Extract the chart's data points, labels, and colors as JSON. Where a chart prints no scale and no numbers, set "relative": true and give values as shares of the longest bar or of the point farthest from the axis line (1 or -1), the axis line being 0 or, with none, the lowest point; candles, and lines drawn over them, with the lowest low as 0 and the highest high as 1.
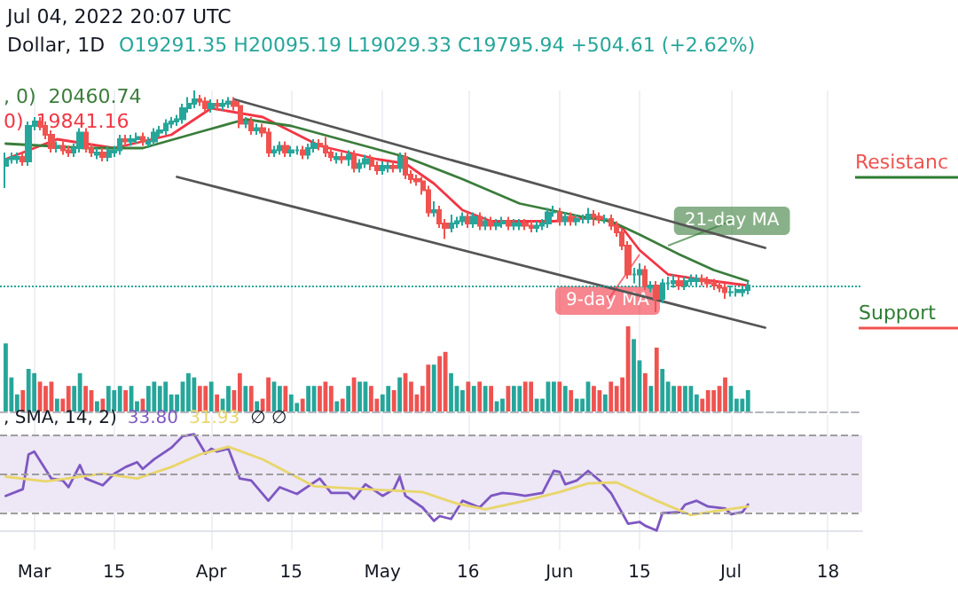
{
  "chart_data": [
    {
      "type": "candlestick",
      "title": "Dollar, 1D",
      "subtitle": "O19291.35 H20095.19 L19029.33 C19795.94 +504.61 (+2.62%)",
      "relative": true,
      "grid": "x",
      "tick_labels": false,
      "xlim": [
        "2022-02-23",
        "2022-07-24"
      ],
      "xticks": [
        {
          "value": "2022-03-01",
          "label": null
        },
        {
          "value": "2022-03-15",
          "label": null
        },
        {
          "value": "2022-04-01",
          "label": null
        },
        {
          "value": "2022-04-15",
          "label": null
        },
        {
          "value": "2022-05-01",
          "label": null
        },
        {
          "value": "2022-05-16",
          "label": null
        },
        {
          "value": "2022-06-01",
          "label": null
        },
        {
          "value": "2022-06-15",
          "label": null
        },
        {
          "value": "2022-07-01",
          "label": null
        },
        {
          "value": "2022-07-18",
          "label": null
        }
      ],
      "x": [
        "2022-02-24",
        "2022-02-25",
        "2022-02-26",
        "2022-02-27",
        "2022-02-28",
        "2022-03-01",
        "2022-03-02",
        "2022-03-03",
        "2022-03-04",
        "2022-03-05",
        "2022-03-06",
        "2022-03-07",
        "2022-03-08",
        "2022-03-09",
        "2022-03-10",
        "2022-03-11",
        "2022-03-12",
        "2022-03-13",
        "2022-03-14",
        "2022-03-15",
        "2022-03-16",
        "2022-03-17",
        "2022-03-18",
        "2022-03-19",
        "2022-03-20",
        "2022-03-21",
        "2022-03-22",
        "2022-03-23",
        "2022-03-24",
        "2022-03-25",
        "2022-03-26",
        "2022-03-27",
        "2022-03-28",
        "2022-03-29",
        "2022-03-30",
        "2022-03-31",
        "2022-04-01",
        "2022-04-02",
        "2022-04-03",
        "2022-04-04",
        "2022-04-05",
        "2022-04-06",
        "2022-04-07",
        "2022-04-08",
        "2022-04-09",
        "2022-04-10",
        "2022-04-11",
        "2022-04-12",
        "2022-04-13",
        "2022-04-14",
        "2022-04-15",
        "2022-04-16",
        "2022-04-17",
        "2022-04-18",
        "2022-04-19",
        "2022-04-20",
        "2022-04-21",
        "2022-04-22",
        "2022-04-23",
        "2022-04-24",
        "2022-04-25",
        "2022-04-26",
        "2022-04-27",
        "2022-04-28",
        "2022-04-29",
        "2022-04-30",
        "2022-05-01",
        "2022-05-02",
        "2022-05-03",
        "2022-05-04",
        "2022-05-05",
        "2022-05-06",
        "2022-05-07",
        "2022-05-08",
        "2022-05-09",
        "2022-05-10",
        "2022-05-11",
        "2022-05-12",
        "2022-05-13",
        "2022-05-14",
        "2022-05-15",
        "2022-05-16",
        "2022-05-17",
        "2022-05-18",
        "2022-05-19",
        "2022-05-20",
        "2022-05-21",
        "2022-05-22",
        "2022-05-23",
        "2022-05-24",
        "2022-05-25",
        "2022-05-26",
        "2022-05-27",
        "2022-05-28",
        "2022-05-29",
        "2022-05-30",
        "2022-05-31",
        "2022-06-01",
        "2022-06-02",
        "2022-06-03",
        "2022-06-04",
        "2022-06-05",
        "2022-06-06",
        "2022-06-07",
        "2022-06-08",
        "2022-06-09",
        "2022-06-10",
        "2022-06-11",
        "2022-06-12",
        "2022-06-13",
        "2022-06-14",
        "2022-06-15",
        "2022-06-16",
        "2022-06-17",
        "2022-06-18",
        "2022-06-19",
        "2022-06-20",
        "2022-06-21",
        "2022-06-22",
        "2022-06-23",
        "2022-06-24",
        "2022-06-25",
        "2022-06-26",
        "2022-06-27",
        "2022-06-28",
        "2022-06-29",
        "2022-06-30",
        "2022-07-01",
        "2022-07-02",
        "2022-07-03",
        "2022-07-04"
      ],
      "ohlc": [
        [
          0.66,
          0.72,
          0.56,
          0.69
        ],
        [
          0.69,
          0.72,
          0.67,
          0.7
        ],
        [
          0.69,
          0.72,
          0.67,
          0.7
        ],
        [
          0.7,
          0.72,
          0.66,
          0.68
        ],
        [
          0.68,
          0.86,
          0.66,
          0.84
        ],
        [
          0.84,
          0.88,
          0.82,
          0.86
        ],
        [
          0.86,
          0.88,
          0.82,
          0.84
        ],
        [
          0.84,
          0.86,
          0.78,
          0.8
        ],
        [
          0.8,
          0.82,
          0.72,
          0.74
        ],
        [
          0.74,
          0.77,
          0.72,
          0.75
        ],
        [
          0.75,
          0.77,
          0.71,
          0.73
        ],
        [
          0.73,
          0.75,
          0.7,
          0.72
        ],
        [
          0.72,
          0.76,
          0.7,
          0.74
        ],
        [
          0.74,
          0.83,
          0.72,
          0.81
        ],
        [
          0.81,
          0.83,
          0.72,
          0.74
        ],
        [
          0.74,
          0.76,
          0.7,
          0.72
        ],
        [
          0.71,
          0.74,
          0.69,
          0.72
        ],
        [
          0.72,
          0.74,
          0.68,
          0.7
        ],
        [
          0.7,
          0.75,
          0.68,
          0.73
        ],
        [
          0.72,
          0.75,
          0.7,
          0.73
        ],
        [
          0.73,
          0.8,
          0.71,
          0.78
        ],
        [
          0.78,
          0.8,
          0.75,
          0.77
        ],
        [
          0.77,
          0.8,
          0.75,
          0.78
        ],
        [
          0.78,
          0.81,
          0.76,
          0.79
        ],
        [
          0.79,
          0.81,
          0.75,
          0.77
        ],
        [
          0.76,
          0.79,
          0.74,
          0.77
        ],
        [
          0.77,
          0.83,
          0.75,
          0.81
        ],
        [
          0.81,
          0.84,
          0.79,
          0.82
        ],
        [
          0.82,
          0.87,
          0.8,
          0.85
        ],
        [
          0.85,
          0.88,
          0.83,
          0.86
        ],
        [
          0.86,
          0.89,
          0.84,
          0.87
        ],
        [
          0.87,
          0.94,
          0.85,
          0.92
        ],
        [
          0.92,
          0.97,
          0.9,
          0.94
        ],
        [
          0.94,
          1.0,
          0.92,
          0.96
        ],
        [
          0.96,
          0.98,
          0.93,
          0.95
        ],
        [
          0.95,
          0.97,
          0.9,
          0.92
        ],
        [
          0.92,
          0.96,
          0.9,
          0.94
        ],
        [
          0.94,
          0.96,
          0.91,
          0.93
        ],
        [
          0.93,
          0.96,
          0.91,
          0.94
        ],
        [
          0.94,
          0.97,
          0.92,
          0.95
        ],
        [
          0.95,
          0.97,
          0.91,
          0.93
        ],
        [
          0.93,
          0.95,
          0.83,
          0.85
        ],
        [
          0.85,
          0.88,
          0.83,
          0.86
        ],
        [
          0.86,
          0.88,
          0.8,
          0.82
        ],
        [
          0.82,
          0.85,
          0.8,
          0.83
        ],
        [
          0.83,
          0.85,
          0.79,
          0.81
        ],
        [
          0.81,
          0.83,
          0.7,
          0.72
        ],
        [
          0.72,
          0.75,
          0.7,
          0.73
        ],
        [
          0.73,
          0.77,
          0.71,
          0.75
        ],
        [
          0.75,
          0.77,
          0.7,
          0.72
        ],
        [
          0.72,
          0.75,
          0.7,
          0.73
        ],
        [
          0.73,
          0.75,
          0.71,
          0.73
        ],
        [
          0.73,
          0.75,
          0.69,
          0.71
        ],
        [
          0.71,
          0.76,
          0.69,
          0.74
        ],
        [
          0.74,
          0.78,
          0.72,
          0.76
        ],
        [
          0.76,
          0.78,
          0.73,
          0.75
        ],
        [
          0.75,
          0.79,
          0.7,
          0.72
        ],
        [
          0.72,
          0.74,
          0.68,
          0.7
        ],
        [
          0.69,
          0.72,
          0.67,
          0.7
        ],
        [
          0.7,
          0.72,
          0.67,
          0.69
        ],
        [
          0.69,
          0.73,
          0.66,
          0.71
        ],
        [
          0.71,
          0.73,
          0.63,
          0.65
        ],
        [
          0.65,
          0.69,
          0.63,
          0.67
        ],
        [
          0.67,
          0.71,
          0.65,
          0.69
        ],
        [
          0.69,
          0.71,
          0.64,
          0.66
        ],
        [
          0.66,
          0.68,
          0.62,
          0.64
        ],
        [
          0.64,
          0.68,
          0.62,
          0.66
        ],
        [
          0.65,
          0.68,
          0.63,
          0.66
        ],
        [
          0.66,
          0.68,
          0.63,
          0.65
        ],
        [
          0.65,
          0.72,
          0.63,
          0.7
        ],
        [
          0.7,
          0.72,
          0.6,
          0.62
        ],
        [
          0.62,
          0.64,
          0.58,
          0.6
        ],
        [
          0.6,
          0.62,
          0.57,
          0.59
        ],
        [
          0.59,
          0.61,
          0.53,
          0.55
        ],
        [
          0.55,
          0.57,
          0.43,
          0.45
        ],
        [
          0.45,
          0.5,
          0.43,
          0.46
        ],
        [
          0.46,
          0.48,
          0.38,
          0.4
        ],
        [
          0.4,
          0.42,
          0.33,
          0.38
        ],
        [
          0.38,
          0.44,
          0.36,
          0.4
        ],
        [
          0.4,
          0.43,
          0.38,
          0.41
        ],
        [
          0.41,
          0.45,
          0.39,
          0.43
        ],
        [
          0.43,
          0.45,
          0.38,
          0.4
        ],
        [
          0.4,
          0.45,
          0.38,
          0.43
        ],
        [
          0.43,
          0.45,
          0.37,
          0.39
        ],
        [
          0.39,
          0.43,
          0.37,
          0.41
        ],
        [
          0.41,
          0.43,
          0.37,
          0.39
        ],
        [
          0.39,
          0.42,
          0.37,
          0.4
        ],
        [
          0.4,
          0.43,
          0.38,
          0.41
        ],
        [
          0.41,
          0.43,
          0.37,
          0.39
        ],
        [
          0.39,
          0.42,
          0.37,
          0.4
        ],
        [
          0.39,
          0.42,
          0.37,
          0.4
        ],
        [
          0.4,
          0.42,
          0.37,
          0.39
        ],
        [
          0.39,
          0.41,
          0.36,
          0.38
        ],
        [
          0.38,
          0.41,
          0.36,
          0.39
        ],
        [
          0.39,
          0.42,
          0.37,
          0.4
        ],
        [
          0.4,
          0.47,
          0.38,
          0.45
        ],
        [
          0.45,
          0.48,
          0.43,
          0.45
        ],
        [
          0.45,
          0.47,
          0.39,
          0.41
        ],
        [
          0.41,
          0.45,
          0.39,
          0.43
        ],
        [
          0.43,
          0.45,
          0.39,
          0.41
        ],
        [
          0.41,
          0.44,
          0.39,
          0.42
        ],
        [
          0.42,
          0.44,
          0.4,
          0.42
        ],
        [
          0.42,
          0.47,
          0.4,
          0.44
        ],
        [
          0.44,
          0.46,
          0.39,
          0.43
        ],
        [
          0.43,
          0.45,
          0.4,
          0.42
        ],
        [
          0.42,
          0.44,
          0.4,
          0.42
        ],
        [
          0.42,
          0.44,
          0.37,
          0.39
        ],
        [
          0.39,
          0.41,
          0.34,
          0.36
        ],
        [
          0.36,
          0.38,
          0.28,
          0.3
        ],
        [
          0.3,
          0.32,
          0.15,
          0.17
        ],
        [
          0.17,
          0.2,
          0.13,
          0.17
        ],
        [
          0.17,
          0.22,
          0.12,
          0.19
        ],
        [
          0.19,
          0.21,
          0.1,
          0.12
        ],
        [
          0.11,
          0.14,
          0.09,
          0.12
        ],
        [
          0.12,
          0.14,
          0.0,
          0.06
        ],
        [
          0.06,
          0.15,
          0.04,
          0.13
        ],
        [
          0.13,
          0.16,
          0.1,
          0.13
        ],
        [
          0.13,
          0.17,
          0.11,
          0.14
        ],
        [
          0.14,
          0.16,
          0.1,
          0.12
        ],
        [
          0.12,
          0.16,
          0.1,
          0.14
        ],
        [
          0.14,
          0.17,
          0.12,
          0.15
        ],
        [
          0.14,
          0.17,
          0.12,
          0.15
        ],
        [
          0.15,
          0.17,
          0.12,
          0.14
        ],
        [
          0.14,
          0.16,
          0.11,
          0.13
        ],
        [
          0.13,
          0.15,
          0.1,
          0.12
        ],
        [
          0.12,
          0.14,
          0.09,
          0.11
        ],
        [
          0.11,
          0.13,
          0.06,
          0.09
        ],
        [
          0.09,
          0.12,
          0.07,
          0.09
        ],
        [
          0.09,
          0.11,
          0.07,
          0.1
        ],
        [
          0.09,
          0.12,
          0.07,
          0.1
        ],
        [
          0.1,
          0.14,
          0.08,
          0.12
        ]
      ],
      "series": [
        {
          "type": "line",
          "color": "#f23645",
          "x": [
            "2022-02-24",
            "2022-03-05",
            "2022-03-15",
            "2022-03-25",
            "2022-04-01",
            "2022-04-10",
            "2022-04-20",
            "2022-04-30",
            "2022-05-05",
            "2022-05-10",
            "2022-05-15",
            "2022-05-20",
            "2022-05-31",
            "2022-06-08",
            "2022-06-12",
            "2022-06-15",
            "2022-06-20",
            "2022-06-25",
            "2022-07-04"
          ],
          "values": [
            0.69,
            0.78,
            0.74,
            0.8,
            0.92,
            0.88,
            0.75,
            0.69,
            0.67,
            0.58,
            0.46,
            0.41,
            0.41,
            0.43,
            0.38,
            0.28,
            0.17,
            0.15,
            0.12
          ]
        },
        {
          "type": "line",
          "color": "#3b7d3b",
          "x": [
            "2022-02-24",
            "2022-03-10",
            "2022-03-20",
            "2022-03-31",
            "2022-04-07",
            "2022-04-15",
            "2022-04-25",
            "2022-05-05",
            "2022-05-15",
            "2022-05-25",
            "2022-06-05",
            "2022-06-10",
            "2022-06-15",
            "2022-06-22",
            "2022-06-28",
            "2022-07-04"
          ],
          "values": [
            0.76,
            0.74,
            0.74,
            0.82,
            0.87,
            0.84,
            0.77,
            0.7,
            0.6,
            0.49,
            0.43,
            0.41,
            0.35,
            0.26,
            0.19,
            0.14
          ]
        },
        {
          "type": "line",
          "color": "#555555",
          "x": [
            "2022-04-05",
            "2022-07-07"
          ],
          "values": [
            0.96,
            0.29
          ]
        },
        {
          "type": "line",
          "color": "#555555",
          "x": [
            "2022-03-26",
            "2022-07-07"
          ],
          "values": [
            0.61,
            -0.07
          ]
        }
      ],
      "ref_lines": [
        {
          "axis": "y",
          "value": 0.12,
          "color": "#26a69a",
          "line_style": "dotted"
        }
      ],
      "annotations": [
        "Jul 04, 2022 20:07 UTC",
        ", 0)  20460.74",
        "0)  19841.16",
        {
          "text": "21-day MA",
          "x": "2022-06-20",
          "y": 0.3
        },
        {
          "text": "9-day MA",
          "x": "2022-06-15",
          "y": 0.26
        },
        "Resistanc",
        "Support"
      ]
    },
    {
      "type": "bar",
      "relative": true,
      "grid": "x",
      "tick_labels": false,
      "xlim": [
        "2022-02-23",
        "2022-07-24"
      ],
      "xticks": [
        {
          "value": "2022-03-01",
          "label": null
        },
        {
          "value": "2022-03-15",
          "label": null
        },
        {
          "value": "2022-04-01",
          "label": null
        },
        {
          "value": "2022-04-15",
          "label": null
        },
        {
          "value": "2022-05-01",
          "label": null
        },
        {
          "value": "2022-05-16",
          "label": null
        },
        {
          "value": "2022-06-01",
          "label": null
        },
        {
          "value": "2022-06-15",
          "label": null
        },
        {
          "value": "2022-07-01",
          "label": null
        },
        {
          "value": "2022-07-18",
          "label": null
        }
      ],
      "x": [
        "2022-02-24",
        "2022-02-25",
        "2022-02-26",
        "2022-02-27",
        "2022-02-28",
        "2022-03-01",
        "2022-03-02",
        "2022-03-03",
        "2022-03-04",
        "2022-03-05",
        "2022-03-06",
        "2022-03-07",
        "2022-03-08",
        "2022-03-09",
        "2022-03-10",
        "2022-03-11",
        "2022-03-12",
        "2022-03-13",
        "2022-03-14",
        "2022-03-15",
        "2022-03-16",
        "2022-03-17",
        "2022-03-18",
        "2022-03-19",
        "2022-03-20",
        "2022-03-21",
        "2022-03-22",
        "2022-03-23",
        "2022-03-24",
        "2022-03-25",
        "2022-03-26",
        "2022-03-27",
        "2022-03-28",
        "2022-03-29",
        "2022-03-30",
        "2022-03-31",
        "2022-04-01",
        "2022-04-02",
        "2022-04-03",
        "2022-04-04",
        "2022-04-05",
        "2022-04-06",
        "2022-04-07",
        "2022-04-08",
        "2022-04-09",
        "2022-04-10",
        "2022-04-11",
        "2022-04-12",
        "2022-04-13",
        "2022-04-14",
        "2022-04-15",
        "2022-04-16",
        "2022-04-17",
        "2022-04-18",
        "2022-04-19",
        "2022-04-20",
        "2022-04-21",
        "2022-04-22",
        "2022-04-23",
        "2022-04-24",
        "2022-04-25",
        "2022-04-26",
        "2022-04-27",
        "2022-04-28",
        "2022-04-29",
        "2022-04-30",
        "2022-05-01",
        "2022-05-02",
        "2022-05-03",
        "2022-05-04",
        "2022-05-05",
        "2022-05-06",
        "2022-05-07",
        "2022-05-08",
        "2022-05-09",
        "2022-05-10",
        "2022-05-11",
        "2022-05-12",
        "2022-05-13",
        "2022-05-14",
        "2022-05-15",
        "2022-05-16",
        "2022-05-17",
        "2022-05-18",
        "2022-05-19",
        "2022-05-20",
        "2022-05-21",
        "2022-05-22",
        "2022-05-23",
        "2022-05-24",
        "2022-05-25",
        "2022-05-26",
        "2022-05-27",
        "2022-05-28",
        "2022-05-29",
        "2022-05-30",
        "2022-05-31",
        "2022-06-01",
        "2022-06-02",
        "2022-06-03",
        "2022-06-04",
        "2022-06-05",
        "2022-06-06",
        "2022-06-07",
        "2022-06-08",
        "2022-06-09",
        "2022-06-10",
        "2022-06-11",
        "2022-06-12",
        "2022-06-13",
        "2022-06-14",
        "2022-06-15",
        "2022-06-16",
        "2022-06-17",
        "2022-06-18",
        "2022-06-19",
        "2022-06-20",
        "2022-06-21",
        "2022-06-22",
        "2022-06-23",
        "2022-06-24",
        "2022-06-25",
        "2022-06-26",
        "2022-06-27",
        "2022-06-28",
        "2022-06-29",
        "2022-06-30",
        "2022-07-01",
        "2022-07-02",
        "2022-07-03",
        "2022-07-04"
      ],
      "values": [
        0.8,
        0.4,
        0.2,
        0.25,
        0.5,
        0.45,
        0.35,
        0.3,
        0.35,
        0.15,
        0.15,
        0.3,
        0.3,
        0.45,
        0.3,
        0.25,
        0.12,
        0.15,
        0.3,
        0.25,
        0.3,
        0.25,
        0.3,
        0.12,
        0.15,
        0.3,
        0.35,
        0.3,
        0.35,
        0.2,
        0.2,
        0.35,
        0.45,
        0.4,
        0.3,
        0.3,
        0.35,
        0.2,
        0.15,
        0.3,
        0.25,
        0.45,
        0.3,
        0.3,
        0.12,
        0.15,
        0.4,
        0.35,
        0.3,
        0.3,
        0.2,
        0.1,
        0.15,
        0.3,
        0.3,
        0.3,
        0.35,
        0.3,
        0.12,
        0.15,
        0.3,
        0.4,
        0.35,
        0.35,
        0.3,
        0.15,
        0.2,
        0.3,
        0.25,
        0.4,
        0.45,
        0.35,
        0.2,
        0.3,
        0.55,
        0.55,
        0.65,
        0.7,
        0.45,
        0.3,
        0.25,
        0.35,
        0.3,
        0.35,
        0.3,
        0.3,
        0.12,
        0.15,
        0.3,
        0.3,
        0.3,
        0.35,
        0.35,
        0.15,
        0.15,
        0.35,
        0.35,
        0.35,
        0.3,
        0.25,
        0.15,
        0.15,
        0.35,
        0.3,
        0.25,
        0.2,
        0.35,
        0.3,
        0.4,
        1.0,
        0.85,
        0.6,
        0.45,
        0.3,
        0.75,
        0.5,
        0.35,
        0.3,
        0.3,
        0.3,
        0.3,
        0.2,
        0.15,
        0.25,
        0.25,
        0.3,
        0.4,
        0.3,
        0.15,
        0.15,
        0.25
      ],
      "colors": [
        "#26a69a",
        "#26a69a",
        "#26a69a",
        "#ef5350",
        "#26a69a",
        "#26a69a",
        "#ef5350",
        "#ef5350",
        "#ef5350",
        "#26a69a",
        "#ef5350",
        "#ef5350",
        "#26a69a",
        "#26a69a",
        "#ef5350",
        "#ef5350",
        "#26a69a",
        "#ef5350",
        "#26a69a",
        "#26a69a",
        "#26a69a",
        "#ef5350",
        "#26a69a",
        "#26a69a",
        "#ef5350",
        "#26a69a",
        "#26a69a",
        "#26a69a",
        "#26a69a",
        "#26a69a",
        "#26a69a",
        "#26a69a",
        "#26a69a",
        "#26a69a",
        "#ef5350",
        "#ef5350",
        "#26a69a",
        "#ef5350",
        "#26a69a",
        "#26a69a",
        "#ef5350",
        "#ef5350",
        "#26a69a",
        "#ef5350",
        "#26a69a",
        "#ef5350",
        "#ef5350",
        "#26a69a",
        "#26a69a",
        "#ef5350",
        "#26a69a",
        "#26a69a",
        "#ef5350",
        "#26a69a",
        "#26a69a",
        "#ef5350",
        "#ef5350",
        "#ef5350",
        "#26a69a",
        "#ef5350",
        "#26a69a",
        "#ef5350",
        "#26a69a",
        "#26a69a",
        "#ef5350",
        "#ef5350",
        "#26a69a",
        "#26a69a",
        "#ef5350",
        "#26a69a",
        "#ef5350",
        "#ef5350",
        "#ef5350",
        "#ef5350",
        "#ef5350",
        "#26a69a",
        "#ef5350",
        "#ef5350",
        "#26a69a",
        "#26a69a",
        "#26a69a",
        "#ef5350",
        "#26a69a",
        "#ef5350",
        "#26a69a",
        "#ef5350",
        "#26a69a",
        "#26a69a",
        "#ef5350",
        "#26a69a",
        "#26a69a",
        "#ef5350",
        "#ef5350",
        "#26a69a",
        "#26a69a",
        "#26a69a",
        "#26a69a",
        "#ef5350",
        "#26a69a",
        "#ef5350",
        "#26a69a",
        "#26a69a",
        "#26a69a",
        "#ef5350",
        "#ef5350",
        "#26a69a",
        "#ef5350",
        "#ef5350",
        "#ef5350",
        "#ef5350",
        "#26a69a",
        "#26a69a",
        "#ef5350",
        "#26a69a",
        "#ef5350",
        "#26a69a",
        "#26a69a",
        "#26a69a",
        "#ef5350",
        "#26a69a",
        "#26a69a",
        "#26a69a",
        "#ef5350",
        "#ef5350",
        "#ef5350",
        "#ef5350",
        "#ef5350",
        "#26a69a",
        "#26a69a",
        "#26a69a",
        "#26a69a"
      ]
    },
    {
      "type": "line",
      "title": ", SMA, 14, 2)",
      "relative": true,
      "grid": "x",
      "xlim": [
        "2022-02-23",
        "2022-07-24"
      ],
      "xticks": [
        {
          "value": "2022-03-01",
          "label": "Mar"
        },
        {
          "value": "2022-03-15",
          "label": "15"
        },
        {
          "value": "2022-04-01",
          "label": "Apr"
        },
        {
          "value": "2022-04-15",
          "label": "15"
        },
        {
          "value": "2022-05-01",
          "label": "May"
        },
        {
          "value": "2022-05-16",
          "label": "16"
        },
        {
          "value": "2022-06-01",
          "label": "Jun"
        },
        {
          "value": "2022-06-15",
          "label": "15"
        },
        {
          "value": "2022-07-01",
          "label": "Jul"
        },
        {
          "value": "2022-07-18",
          "label": "18"
        }
      ],
      "series": [
        {
          "color": "#7e57c2",
          "x": [
            "2022-02-24",
            "2022-02-27",
            "2022-02-28",
            "2022-03-01",
            "2022-03-04",
            "2022-03-06",
            "2022-03-07",
            "2022-03-09",
            "2022-03-10",
            "2022-03-13",
            "2022-03-15",
            "2022-03-17",
            "2022-03-19",
            "2022-03-20",
            "2022-03-22",
            "2022-03-25",
            "2022-03-27",
            "2022-03-29",
            "2022-03-31",
            "2022-04-01",
            "2022-04-02",
            "2022-04-04",
            "2022-04-06",
            "2022-04-08",
            "2022-04-11",
            "2022-04-13",
            "2022-04-16",
            "2022-04-20",
            "2022-04-22",
            "2022-04-25",
            "2022-04-26",
            "2022-04-28",
            "2022-05-01",
            "2022-05-03",
            "2022-05-04",
            "2022-05-05",
            "2022-05-08",
            "2022-05-10",
            "2022-05-11",
            "2022-05-13",
            "2022-05-15",
            "2022-05-18",
            "2022-05-20",
            "2022-05-22",
            "2022-05-24",
            "2022-05-26",
            "2022-05-29",
            "2022-05-31",
            "2022-06-01",
            "2022-06-02",
            "2022-06-04",
            "2022-06-06",
            "2022-06-08",
            "2022-06-10",
            "2022-06-13",
            "2022-06-15",
            "2022-06-16",
            "2022-06-18",
            "2022-06-19",
            "2022-06-22",
            "2022-06-23",
            "2022-06-25",
            "2022-06-27",
            "2022-06-30",
            "2022-07-01",
            "2022-07-03",
            "2022-07-04"
          ],
          "values": [
            0.36,
            0.43,
            0.79,
            0.82,
            0.54,
            0.52,
            0.45,
            0.68,
            0.54,
            0.47,
            0.59,
            0.66,
            0.71,
            0.64,
            0.74,
            0.86,
            0.98,
            1.0,
            0.8,
            0.85,
            0.82,
            0.85,
            0.54,
            0.52,
            0.31,
            0.45,
            0.38,
            0.54,
            0.39,
            0.39,
            0.33,
            0.48,
            0.36,
            0.43,
            0.56,
            0.36,
            0.24,
            0.1,
            0.15,
            0.12,
            0.31,
            0.24,
            0.36,
            0.39,
            0.38,
            0.36,
            0.39,
            0.62,
            0.61,
            0.48,
            0.52,
            0.62,
            0.52,
            0.39,
            0.07,
            0.09,
            0.05,
            0.0,
            0.18,
            0.19,
            0.27,
            0.31,
            0.25,
            0.23,
            0.17,
            0.19,
            0.27
          ]
        },
        {
          "color": "#e9d66b",
          "x": [
            "2022-02-24",
            "2022-03-03",
            "2022-03-13",
            "2022-03-19",
            "2022-03-25",
            "2022-03-30",
            "2022-04-04",
            "2022-04-10",
            "2022-04-19",
            "2022-04-28",
            "2022-05-08",
            "2022-05-14",
            "2022-05-19",
            "2022-05-26",
            "2022-06-01",
            "2022-06-06",
            "2022-06-11",
            "2022-06-18",
            "2022-06-24",
            "2022-06-27",
            "2022-07-04"
          ],
          "values": [
            0.56,
            0.51,
            0.59,
            0.54,
            0.66,
            0.79,
            0.87,
            0.74,
            0.46,
            0.43,
            0.4,
            0.28,
            0.22,
            0.31,
            0.4,
            0.49,
            0.5,
            0.31,
            0.16,
            0.19,
            0.25
          ]
        }
      ],
      "bands": [
        {
          "axis": "y",
          "from": 0.19,
          "to": 0.99,
          "color": "#ede7f6"
        }
      ],
      "ref_lines": [
        {
          "axis": "y",
          "value": 0.99,
          "color": "#9e9e9e",
          "line_style": "dashed"
        },
        {
          "axis": "y",
          "value": 0.59,
          "color": "#9e9e9e",
          "line_style": "dashed"
        },
        {
          "axis": "y",
          "value": 0.19,
          "color": "#9e9e9e",
          "line_style": "dashed"
        }
      ],
      "annotations": [
        "33.80",
        "31.93",
        "∅ ∅"
      ]
    }
  ]
}
